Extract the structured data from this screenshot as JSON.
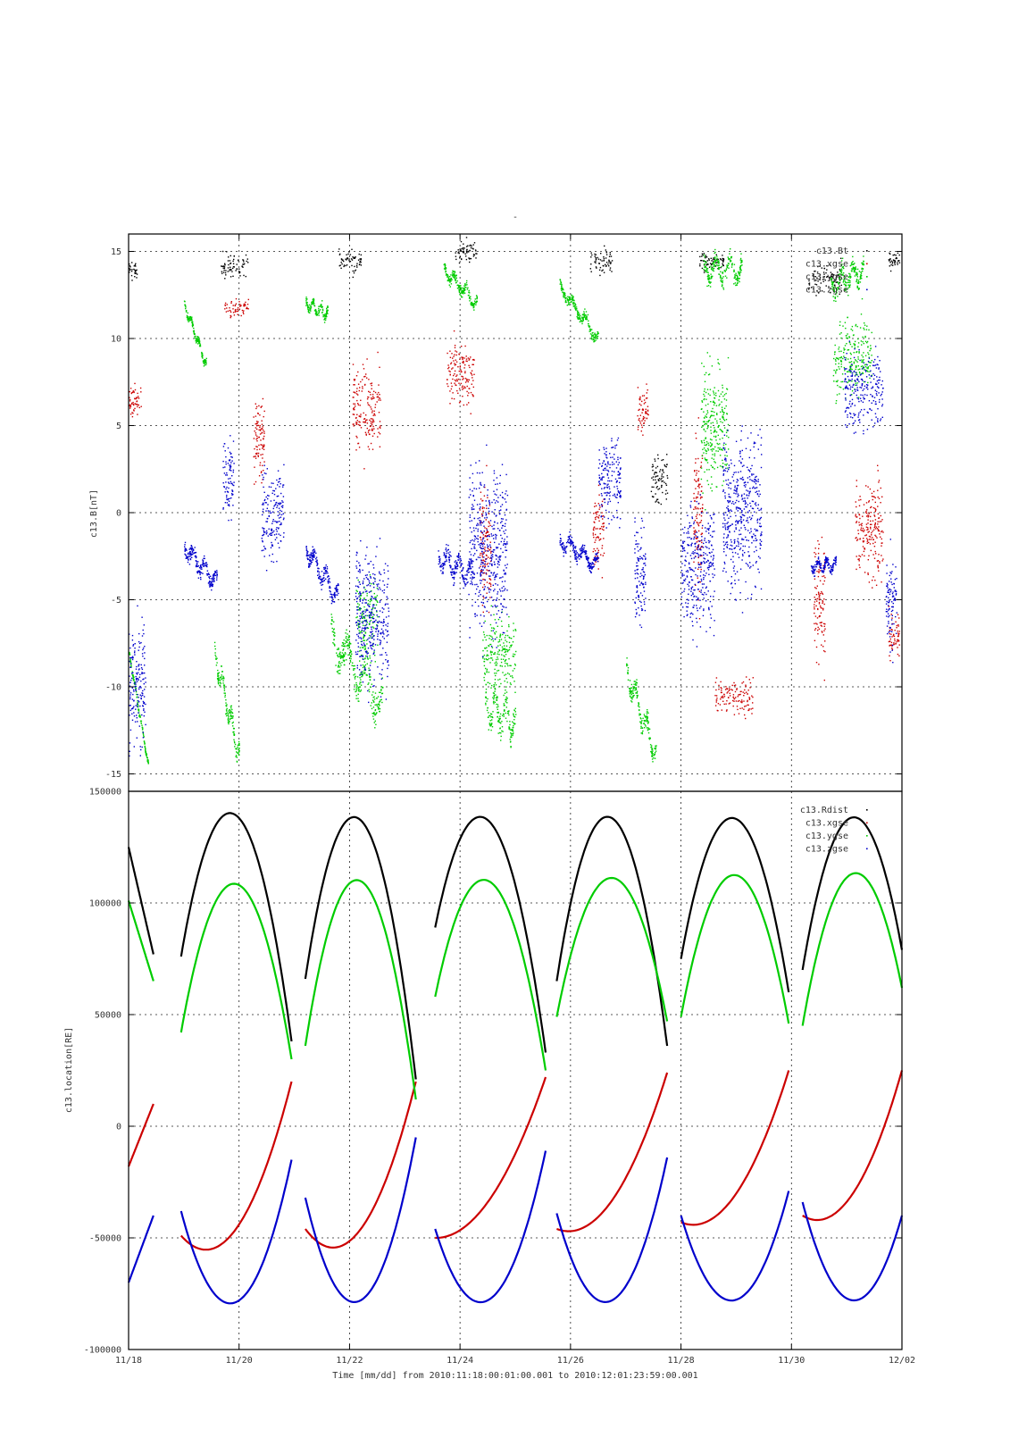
{
  "top_mark": "-",
  "chart_data": [
    {
      "type": "scatter",
      "ylabel": "c13.B[nT]",
      "xlabel": "",
      "ylim": [
        -16,
        16
      ],
      "yticks": [
        -15,
        -10,
        -5,
        0,
        5,
        10,
        15
      ],
      "ytick_labels": [
        "-15",
        "-10",
        "-5",
        "0",
        "5",
        "10",
        "15"
      ],
      "grid": true,
      "legend_placement": "top-right",
      "colors": [
        "#000000",
        "#cc0000",
        "#00cc00",
        "#0000cc"
      ],
      "series": [
        {
          "name": "c13.Bt",
          "color": "#000000",
          "clouds": [
            [
              0.05,
              14,
              1.2,
              0.1
            ],
            [
              1.9,
              14.2,
              1.5,
              0.25
            ],
            [
              4.0,
              14.5,
              1.5,
              0.2
            ],
            [
              6.1,
              15,
              1.5,
              0.2
            ],
            [
              8.55,
              14.5,
              1.5,
              0.2
            ],
            [
              10.55,
              14.5,
              1.5,
              0.22
            ],
            [
              12.6,
              13.5,
              1.8,
              0.3
            ],
            [
              13.85,
              14.5,
              1.2,
              0.1
            ],
            [
              9.6,
              2,
              3,
              0.15
            ]
          ]
        },
        {
          "name": "c13.xgse",
          "color": "#cc0000",
          "clouds": [
            [
              0.1,
              6.5,
              2.2,
              0.12
            ],
            [
              1.95,
              11.8,
              1.2,
              0.22
            ],
            [
              2.35,
              4,
              6,
              0.1
            ],
            [
              4.3,
              6,
              5,
              0.25
            ],
            [
              6.0,
              8,
              4,
              0.25
            ],
            [
              6.45,
              -2,
              8,
              0.1
            ],
            [
              8.5,
              -1,
              5,
              0.1
            ],
            [
              9.3,
              6,
              3,
              0.1
            ],
            [
              10.3,
              0,
              10,
              0.08
            ],
            [
              10.95,
              -10.5,
              2.5,
              0.35
            ],
            [
              12.5,
              -5,
              7,
              0.1
            ],
            [
              13.4,
              -1,
              6,
              0.25
            ],
            [
              13.85,
              -7,
              3,
              0.1
            ]
          ]
        },
        {
          "name": "c13.ygse",
          "color": "#00cc00",
          "trends": [
            [
              0.0,
              -8,
              0.35,
              -14.5,
              0.35
            ],
            [
              1.0,
              12,
              1.4,
              8.5,
              0.6
            ],
            [
              1.55,
              -8,
              2.0,
              -14,
              1.5
            ],
            [
              3.2,
              12,
              3.6,
              11.5,
              0.8
            ],
            [
              3.65,
              -7,
              4.6,
              -11,
              2.5
            ],
            [
              5.7,
              14,
              6.3,
              12,
              0.8
            ],
            [
              6.45,
              -11,
              7.0,
              -12,
              2.5
            ],
            [
              7.8,
              13,
              8.5,
              10,
              0.8
            ],
            [
              9.0,
              -9,
              9.55,
              -14,
              1.5
            ],
            [
              10.4,
              14,
              11.1,
              14,
              1.6
            ],
            [
              12.7,
              13,
              13.3,
              14,
              1.5
            ]
          ],
          "clouds": [
            [
              4.3,
              -6,
              5,
              0.2
            ],
            [
              6.7,
              -8,
              5,
              0.3
            ],
            [
              10.6,
              5,
              8,
              0.25
            ],
            [
              13.1,
              9,
              5,
              0.35
            ]
          ]
        },
        {
          "name": "c13.zgse",
          "color": "#0000cc",
          "trends": [
            [
              1.0,
              -2,
              1.6,
              -4,
              1.2
            ],
            [
              3.2,
              -2,
              3.8,
              -5,
              1.3
            ],
            [
              5.6,
              -2.5,
              6.2,
              -3.5,
              1.5
            ],
            [
              7.8,
              -1.5,
              8.5,
              -3,
              1.0
            ],
            [
              12.35,
              -3,
              12.8,
              -3,
              0.8
            ]
          ],
          "clouds": [
            [
              0.15,
              -10,
              8,
              0.15
            ],
            [
              1.8,
              2,
              5,
              0.1
            ],
            [
              2.6,
              0,
              6,
              0.2
            ],
            [
              4.4,
              -6,
              9,
              0.3
            ],
            [
              6.5,
              -2,
              10,
              0.35
            ],
            [
              8.7,
              2,
              6,
              0.2
            ],
            [
              9.25,
              -3.5,
              7,
              0.1
            ],
            [
              10.3,
              -3,
              8,
              0.3
            ],
            [
              11.1,
              0,
              10,
              0.35
            ],
            [
              13.3,
              7,
              5,
              0.35
            ],
            [
              13.8,
              -5,
              6,
              0.1
            ]
          ]
        }
      ]
    },
    {
      "type": "line",
      "ylabel": "c13.location[RE]",
      "xlabel": "Time [mm/dd]  from 2010:11:18:00:01:00.001  to  2010:12:01:23:59:00.001",
      "ylim": [
        -100000,
        150000
      ],
      "yticks": [
        -100000,
        -50000,
        0,
        50000,
        100000,
        150000
      ],
      "ytick_labels": [
        "-100000",
        "-50000",
        "0",
        "50000",
        "100000",
        "150000"
      ],
      "xlim": [
        0,
        14
      ],
      "xticks": [
        0,
        2,
        4,
        6,
        8,
        10,
        12,
        14
      ],
      "categories": [
        "11/18",
        "11/20",
        "11/22",
        "11/24",
        "11/26",
        "11/28",
        "11/30",
        "12/02"
      ],
      "grid": true,
      "legend_placement": "top-right",
      "segments": [
        [
          0,
          0.45
        ],
        [
          0.95,
          2.95
        ],
        [
          3.2,
          5.2
        ],
        [
          5.55,
          7.55
        ],
        [
          7.75,
          9.75
        ],
        [
          10.0,
          11.95
        ],
        [
          12.2,
          14.0
        ]
      ],
      "series": [
        {
          "name": "c13.Rdist",
          "color": "#000000",
          "points": [
            [
              0,
              125000
            ],
            [
              0.45,
              77000
            ],
            [
              0.95,
              76000
            ],
            [
              2.0,
              138000
            ],
            [
              2.95,
              38000
            ],
            [
              3.2,
              66000
            ],
            [
              4.15,
              138000
            ],
            [
              5.2,
              21000
            ],
            [
              5.55,
              89000
            ],
            [
              6.45,
              138000
            ],
            [
              7.55,
              33000
            ],
            [
              7.75,
              65000
            ],
            [
              8.75,
              138000
            ],
            [
              9.75,
              36000
            ],
            [
              10.0,
              75000
            ],
            [
              10.95,
              138000
            ],
            [
              11.95,
              60000
            ],
            [
              12.2,
              70000
            ],
            [
              13.2,
              138000
            ],
            [
              14.0,
              79000
            ]
          ]
        },
        {
          "name": "c13.xgse",
          "color": "#cc0000",
          "points": [
            [
              0,
              -18000
            ],
            [
              0.45,
              10000
            ],
            [
              0.95,
              -49000
            ],
            [
              1.3,
              -55000
            ],
            [
              2.95,
              20000
            ],
            [
              3.2,
              -46000
            ],
            [
              3.5,
              -53000
            ],
            [
              5.2,
              20000
            ],
            [
              5.55,
              -50000
            ],
            [
              5.8,
              -49000
            ],
            [
              7.55,
              22000
            ],
            [
              7.75,
              -46000
            ],
            [
              8.0,
              -47000
            ],
            [
              9.75,
              24000
            ],
            [
              10.0,
              -43000
            ],
            [
              10.3,
              -44000
            ],
            [
              11.95,
              25000
            ],
            [
              12.2,
              -40000
            ],
            [
              12.45,
              -42000
            ],
            [
              14.0,
              25000
            ]
          ]
        },
        {
          "name": "c13.ygse",
          "color": "#00cc00",
          "points": [
            [
              0,
              101000
            ],
            [
              0.45,
              65000
            ],
            [
              0.95,
              42000
            ],
            [
              2.0,
              108000
            ],
            [
              2.95,
              30000
            ],
            [
              3.2,
              36000
            ],
            [
              4.25,
              109000
            ],
            [
              5.2,
              12000
            ],
            [
              5.55,
              58000
            ],
            [
              6.5,
              110000
            ],
            [
              7.55,
              25000
            ],
            [
              7.75,
              49000
            ],
            [
              8.8,
              111000
            ],
            [
              9.75,
              47000
            ],
            [
              10.0,
              49000
            ],
            [
              11.05,
              112000
            ],
            [
              11.95,
              46000
            ],
            [
              12.2,
              45000
            ],
            [
              13.3,
              112000
            ],
            [
              14.0,
              62000
            ]
          ]
        },
        {
          "name": "c13.zgse",
          "color": "#0000cc",
          "points": [
            [
              0,
              -70000
            ],
            [
              0.45,
              -40000
            ],
            [
              0.95,
              -38000
            ],
            [
              2.0,
              -78000
            ],
            [
              2.95,
              -15000
            ],
            [
              3.2,
              -32000
            ],
            [
              4.2,
              -78000
            ],
            [
              5.2,
              -5000
            ],
            [
              5.55,
              -46000
            ],
            [
              6.5,
              -78000
            ],
            [
              7.55,
              -11000
            ],
            [
              7.75,
              -39000
            ],
            [
              8.75,
              -78000
            ],
            [
              9.75,
              -14000
            ],
            [
              10.0,
              -40000
            ],
            [
              10.95,
              -78000
            ],
            [
              11.95,
              -29000
            ],
            [
              12.2,
              -34000
            ],
            [
              13.15,
              -78000
            ],
            [
              14.0,
              -40000
            ]
          ]
        }
      ]
    }
  ]
}
